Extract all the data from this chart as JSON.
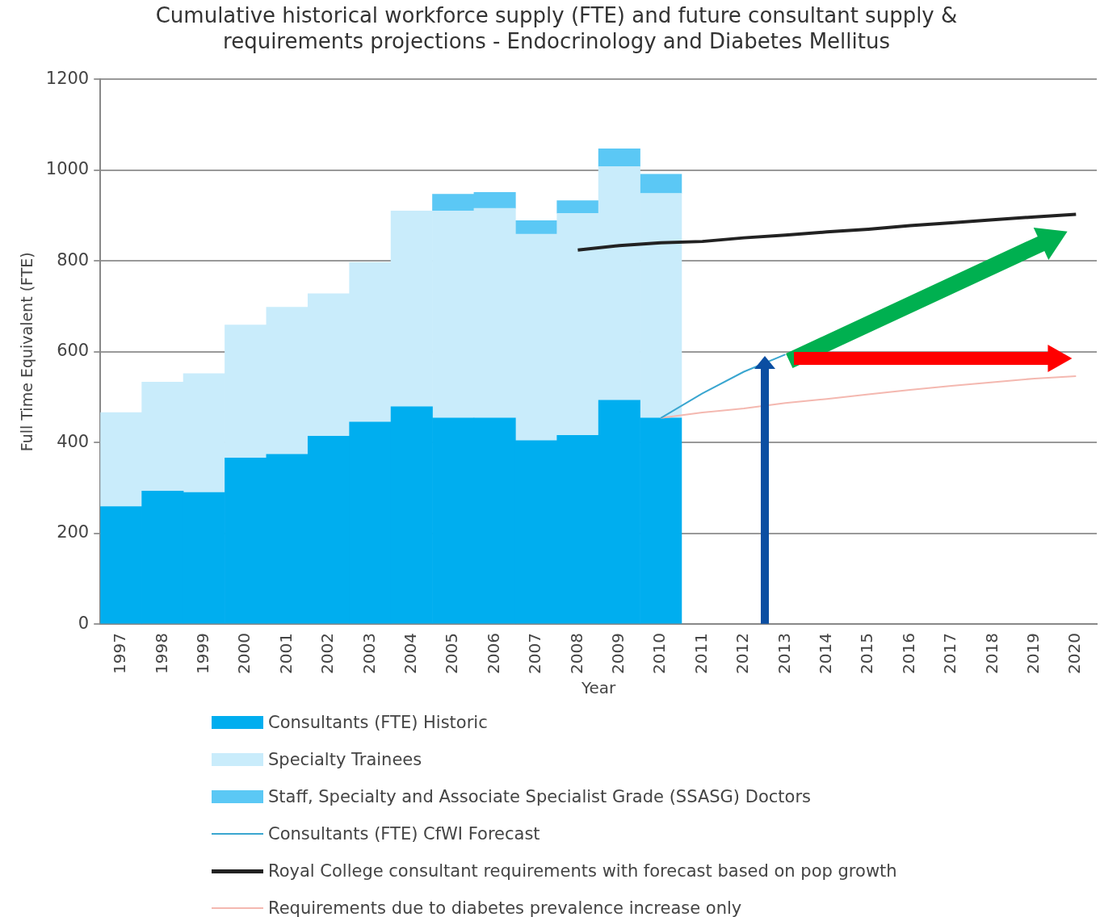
{
  "chart_data": {
    "type": "bar",
    "title": "Cumulative historical workforce supply (FTE) and future consultant supply & requirements projections - Endocrinology and Diabetes Mellitus",
    "xlabel": "Year",
    "ylabel": "Full Time Equivalent (FTE)",
    "categories": [
      "1997",
      "1998",
      "1999",
      "2000",
      "2001",
      "2002",
      "2003",
      "2004",
      "2005",
      "2006",
      "2007",
      "2008",
      "2009",
      "2010",
      "2011",
      "2012",
      "2013",
      "2014",
      "2015",
      "2016",
      "2017",
      "2018",
      "2019",
      "2020"
    ],
    "stacked": true,
    "ylim": [
      0,
      1200
    ],
    "yticks": [
      0,
      200,
      400,
      600,
      800,
      1000,
      1200
    ],
    "grid": "y",
    "legend": "bottom",
    "series": [
      {
        "name": "Consultants (FTE) Historic",
        "color": "#00aeef",
        "values": [
          259,
          293,
          290,
          366,
          374,
          414,
          445,
          479,
          454,
          454,
          404,
          416,
          493,
          454,
          null,
          null,
          null,
          null,
          null,
          null,
          null,
          null,
          null,
          null
        ]
      },
      {
        "name": "Specialty Trainees",
        "color": "#c9ecfb",
        "values": [
          207,
          240,
          262,
          293,
          324,
          314,
          352,
          431,
          456,
          462,
          455,
          489,
          515,
          495,
          null,
          null,
          null,
          null,
          null,
          null,
          null,
          null,
          null,
          null
        ]
      },
      {
        "name": "Staff, Specialty and Associate Specialist Grade (SSASG) Doctors",
        "color": "#5bc8f5",
        "values": [
          null,
          null,
          null,
          null,
          null,
          null,
          null,
          null,
          37,
          35,
          30,
          28,
          39,
          42,
          null,
          null,
          null,
          null,
          null,
          null,
          null,
          null,
          null,
          null
        ]
      },
      {
        "name": "Consultants (FTE) CfWI Forecast",
        "type": "line",
        "color": "#3aa6d0",
        "values": [
          null,
          null,
          null,
          null,
          null,
          null,
          null,
          null,
          null,
          null,
          null,
          null,
          null,
          454,
          508,
          556,
          594,
          null,
          null,
          null,
          null,
          null,
          null,
          null
        ]
      },
      {
        "name": "Royal College consultant requirements with forecast based on pop growth",
        "type": "line",
        "color": "#222222",
        "values": [
          null,
          null,
          null,
          null,
          null,
          null,
          null,
          null,
          null,
          null,
          null,
          824,
          834,
          840,
          843,
          851,
          857,
          864,
          870,
          878,
          884,
          891,
          897,
          903
        ]
      },
      {
        "name": "Requirements due to diabetes prevalence increase only",
        "type": "line",
        "color": "#f4b8b0",
        "values": [
          null,
          null,
          null,
          null,
          null,
          null,
          null,
          null,
          null,
          null,
          null,
          null,
          null,
          454,
          466,
          475,
          487,
          496,
          506,
          516,
          525,
          533,
          541,
          546
        ]
      }
    ]
  }
}
